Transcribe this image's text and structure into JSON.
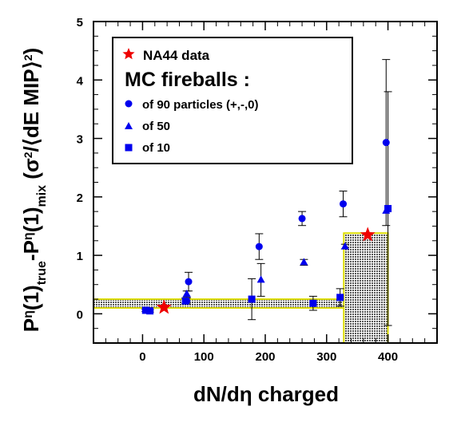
{
  "chart_data": {
    "type": "scatter",
    "xlabel": "dN/dη charged",
    "ylabel_parts": {
      "p1": "P",
      "eta1": "η",
      "p2": "(1)",
      "sub_true": "true",
      "minus": "-P",
      "eta2": "η",
      "p3": "(1)",
      "sub_mix": "mix",
      "p4": " (σ",
      "sup2": "2",
      "p5": "/⟨dE MIP⟩",
      "sup3": "2",
      "p6": ")"
    },
    "xlim": [
      -80,
      480
    ],
    "ylim": [
      -0.5,
      5
    ],
    "xticks": [
      0,
      100,
      200,
      300,
      400
    ],
    "yticks": [
      0,
      1,
      2,
      3,
      4,
      5
    ],
    "legend": {
      "na44_label": "NA44 data",
      "mc_header": "MC fireballs :",
      "circle_label": "of 90 particles (+,-,0)",
      "triangle_label": "of 50",
      "square_label": "of 10"
    },
    "colors": {
      "marker": "#0000ee",
      "star": "#ee0000",
      "band_border": "#dddd00",
      "band_fill": "#555555"
    },
    "bands": [
      {
        "x0": -80,
        "x1": 328,
        "y0": 0.1,
        "y1": 0.25
      },
      {
        "x0": 328,
        "x1": 400,
        "y0": -0.5,
        "y1": 1.38
      }
    ],
    "series": [
      {
        "name": "NA44 data",
        "marker": "star",
        "points": [
          {
            "x": 35,
            "y": 0.11
          },
          {
            "x": 367,
            "y": 1.35
          }
        ]
      },
      {
        "name": "of 90 particles (+,-,0)",
        "marker": "circle",
        "points": [
          {
            "x": 8,
            "y": 0.06,
            "err": 0.02
          },
          {
            "x": 72,
            "y": 0.22,
            "err": 0.05
          },
          {
            "x": 75,
            "y": 0.55,
            "err": 0.16
          },
          {
            "x": 190,
            "y": 1.15,
            "err": 0.22
          },
          {
            "x": 260,
            "y": 1.63,
            "err": 0.12
          },
          {
            "x": 327,
            "y": 1.88,
            "err": 0.22
          },
          {
            "x": 397,
            "y": 2.93,
            "err": 1.42
          }
        ]
      },
      {
        "name": "of 50",
        "marker": "triangle",
        "points": [
          {
            "x": 72,
            "y": 0.34,
            "err": 0.05
          },
          {
            "x": 193,
            "y": 0.58,
            "err": 0.28
          },
          {
            "x": 263,
            "y": 0.88,
            "err": 0.05
          },
          {
            "x": 330,
            "y": 1.15,
            "err": 0.04
          },
          {
            "x": 397,
            "y": 1.76,
            "err": 0.0
          }
        ]
      },
      {
        "name": "of 10",
        "marker": "square",
        "points": [
          {
            "x": 5,
            "y": 0.06,
            "err": 0.02
          },
          {
            "x": 12,
            "y": 0.05,
            "err": 0.02
          },
          {
            "x": 70,
            "y": 0.22,
            "err": 0.05
          },
          {
            "x": 178,
            "y": 0.25,
            "err": 0.35
          },
          {
            "x": 278,
            "y": 0.18,
            "err": 0.12
          },
          {
            "x": 322,
            "y": 0.28,
            "err": 0.15
          },
          {
            "x": 400,
            "y": 1.8,
            "err": 2.0
          }
        ]
      }
    ]
  }
}
